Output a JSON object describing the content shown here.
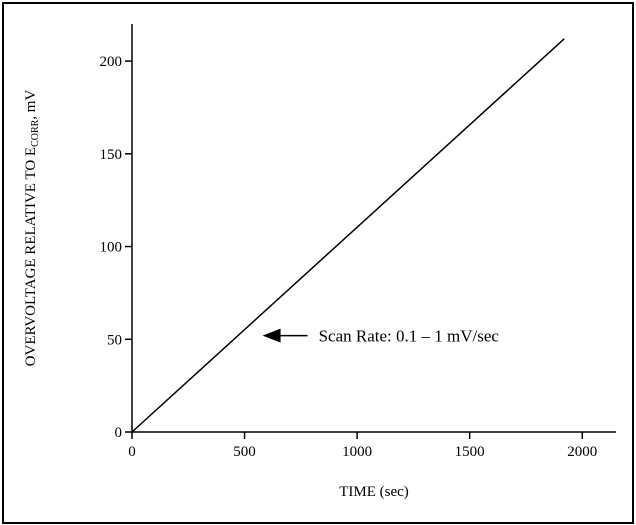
{
  "chart_data": {
    "type": "line",
    "title": "",
    "xlabel": "TIME (sec)",
    "ylabel": {
      "prefix": "OVERVOLTAGE RELATIVE TO E",
      "subscript": "CORR",
      "suffix": ", mV"
    },
    "xlim": [
      0,
      2150
    ],
    "ylim": [
      0,
      220
    ],
    "xticks": [
      0,
      500,
      1000,
      1500,
      2000
    ],
    "yticks": [
      0,
      50,
      100,
      150,
      200
    ],
    "xtick_labels": [
      "0",
      "500",
      "1000",
      "1500",
      "2000"
    ],
    "ytick_labels": [
      "0",
      "50",
      "100",
      "150",
      "200"
    ],
    "grid": false,
    "series": [
      {
        "x": [
          0,
          1920
        ],
        "y": [
          0,
          212
        ]
      }
    ],
    "annotations": [
      {
        "text": "Scan Rate: 0.1 – 1 mV/sec",
        "arrow_tip": [
          580,
          52
        ],
        "arrow_tail": [
          780,
          52
        ]
      }
    ],
    "colors": {
      "line": "#000000",
      "axes": "#000000",
      "frame": "#000000",
      "background": "#ffffff"
    }
  }
}
